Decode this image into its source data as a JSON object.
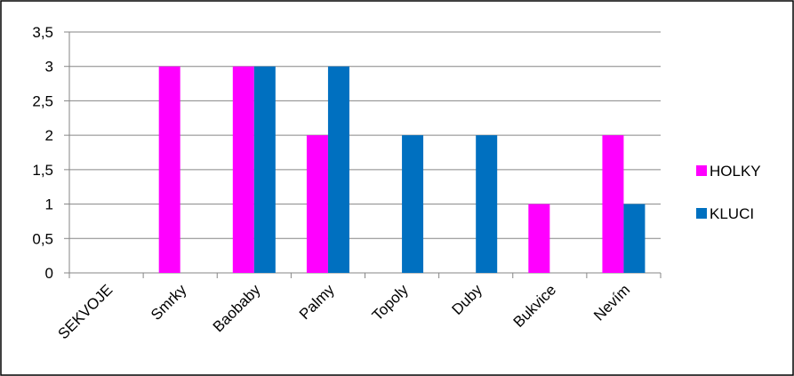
{
  "chart_data": {
    "type": "bar",
    "title": "",
    "xlabel": "",
    "ylabel": "",
    "categories": [
      "SEKVOJE",
      "Smrky",
      "Baobaby",
      "Palmy",
      "Topoly",
      "Duby",
      "Bukvice",
      "Nevím"
    ],
    "series": [
      {
        "name": "HOLKY",
        "color": "#ff00ff",
        "values": [
          0,
          3,
          3,
          2,
          0,
          0,
          1,
          2
        ]
      },
      {
        "name": "KLUCI",
        "color": "#0070c0",
        "values": [
          0,
          0,
          3,
          3,
          2,
          2,
          0,
          1
        ]
      }
    ],
    "ylim": [
      0,
      3.5
    ],
    "yticks": [
      0,
      0.5,
      1,
      1.5,
      2,
      2.5,
      3,
      3.5
    ],
    "ytick_labels": [
      "0",
      "0,5",
      "1",
      "1,5",
      "2",
      "2,5",
      "3",
      "3,5"
    ],
    "grid": true,
    "legend_position": "right"
  }
}
